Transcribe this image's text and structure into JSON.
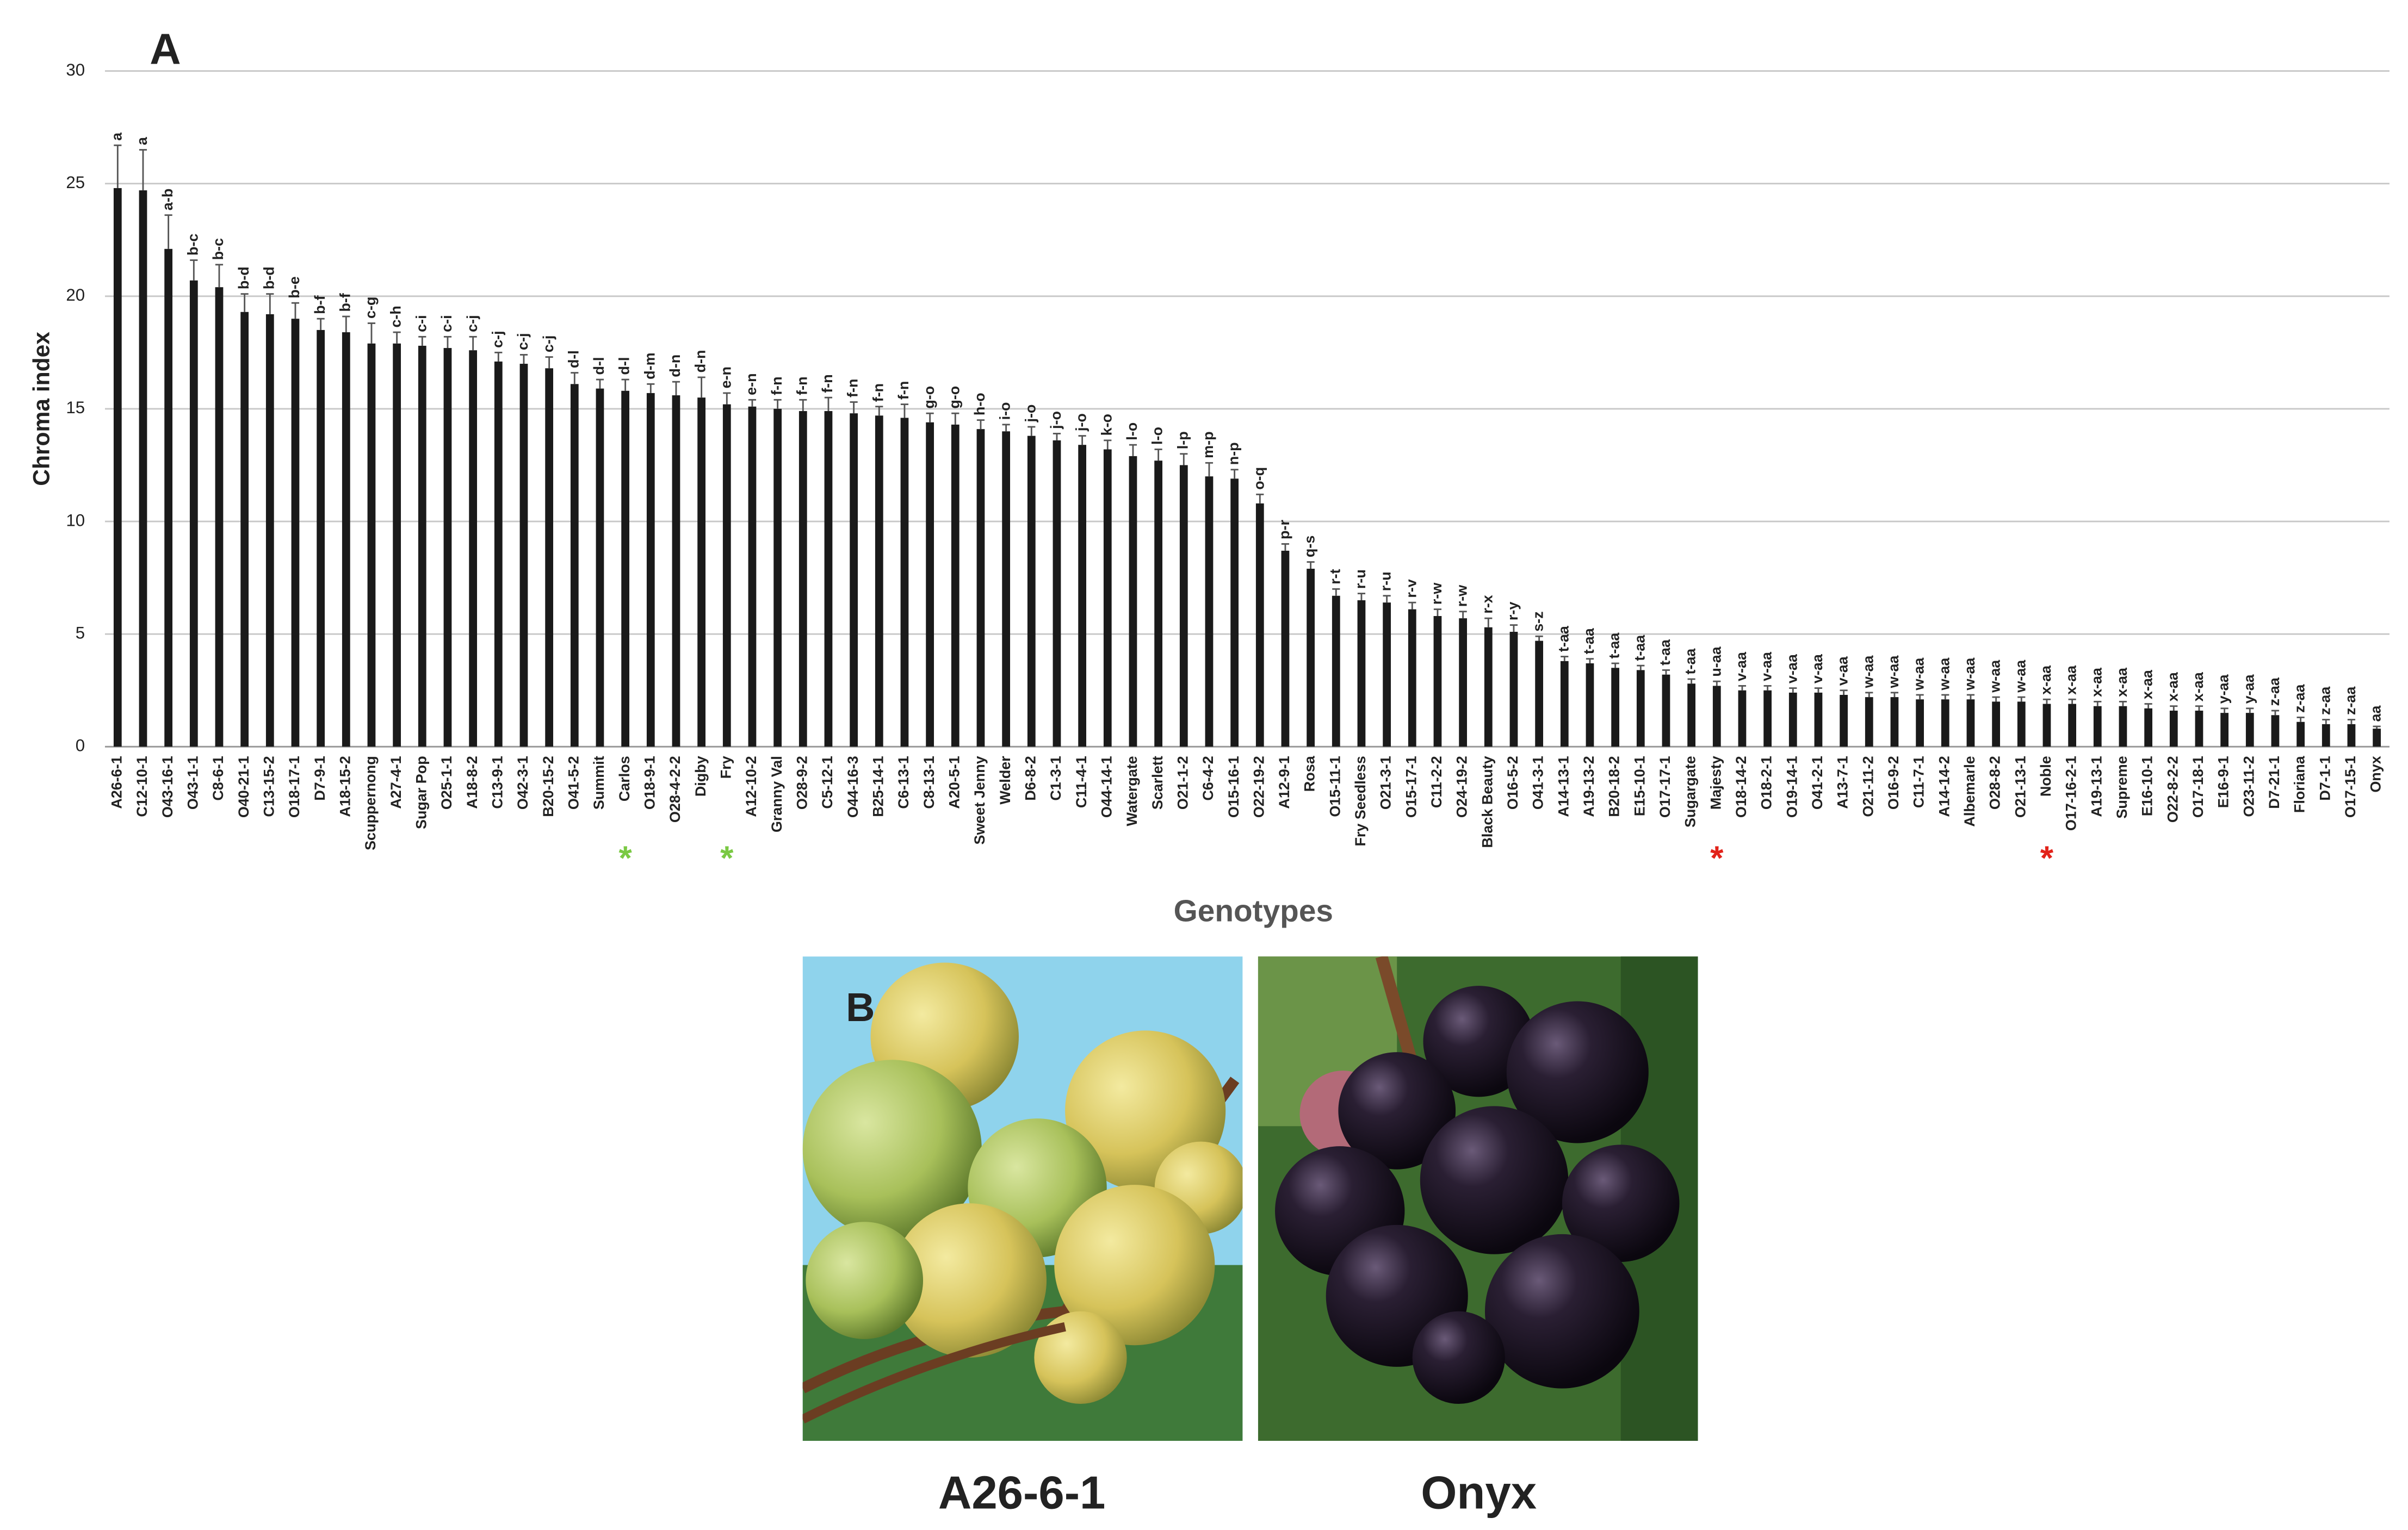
{
  "chart_data": {
    "type": "bar",
    "panel_label": "A",
    "ylabel": "Chroma index",
    "xlabel": "Genotypes",
    "categories": [
      "A26-6-1",
      "C12-10-1",
      "O43-16-1",
      "O43-1-1",
      "C8-6-1",
      "O40-21-1",
      "C13-15-2",
      "O18-17-1",
      "D7-9-1",
      "A18-15-2",
      "Scuppernong",
      "A27-4-1",
      "Sugar Pop",
      "O25-1-1",
      "A18-8-2",
      "C13-9-1",
      "O42-3-1",
      "B20-15-2",
      "O41-5-2",
      "Summit",
      "Carlos",
      "O18-9-1",
      "O28-4-2-2",
      "Digby",
      "Fry",
      "A12-10-2",
      "Granny Val",
      "O28-9-2",
      "C5-12-1",
      "O44-16-3",
      "B25-14-1",
      "C6-13-1",
      "C8-13-1",
      "A20-5-1",
      "Sweet Jenny",
      "Welder",
      "D6-8-2",
      "C1-3-1",
      "C11-4-1",
      "O44-14-1",
      "Watergate",
      "Scarlett",
      "O21-1-2",
      "C6-4-2",
      "O15-16-1",
      "O22-19-2",
      "A12-9-1",
      "Rosa",
      "O15-11-1",
      "Fry Seedless",
      "O21-3-1",
      "O15-17-1",
      "C11-2-2",
      "O24-19-2",
      "Black Beauty",
      "O16-5-2",
      "O41-3-1",
      "A14-13-1",
      "A19-13-2",
      "B20-18-2",
      "E15-10-1",
      "O17-17-1",
      "Sugargate",
      "Majesty",
      "O18-14-2",
      "O18-2-1",
      "O19-14-1",
      "O41-2-1",
      "A13-7-1",
      "O21-11-2",
      "O16-9-2",
      "C11-7-1",
      "A14-14-2",
      "Albemarle",
      "O28-8-2",
      "O21-13-1",
      "Noble",
      "O17-16-2-1",
      "A19-13-1",
      "Supreme",
      "E16-10-1",
      "O22-8-2-2",
      "O17-18-1",
      "E16-9-1",
      "O23-11-2",
      "D7-21-1",
      "Floriana",
      "D7-1-1",
      "O17-15-1",
      "Onyx"
    ],
    "values": [
      24.8,
      24.7,
      22.1,
      20.7,
      20.4,
      19.3,
      19.2,
      19.0,
      18.5,
      18.4,
      17.9,
      17.9,
      17.8,
      17.7,
      17.6,
      17.1,
      17.0,
      16.8,
      16.1,
      15.9,
      15.8,
      15.7,
      15.6,
      15.5,
      15.2,
      15.1,
      15.0,
      14.9,
      14.9,
      14.8,
      14.7,
      14.6,
      14.4,
      14.3,
      14.1,
      14.0,
      13.8,
      13.6,
      13.4,
      13.2,
      12.9,
      12.7,
      12.5,
      12.0,
      11.9,
      10.8,
      8.7,
      7.9,
      6.7,
      6.5,
      6.4,
      6.1,
      5.8,
      5.7,
      5.3,
      5.1,
      4.7,
      3.8,
      3.7,
      3.5,
      3.4,
      3.2,
      2.8,
      2.7,
      2.5,
      2.5,
      2.4,
      2.4,
      2.3,
      2.2,
      2.2,
      2.1,
      2.1,
      2.1,
      2.0,
      2.0,
      1.9,
      1.9,
      1.8,
      1.8,
      1.7,
      1.6,
      1.6,
      1.5,
      1.5,
      1.4,
      1.1,
      1.0,
      1.0,
      0.8
    ],
    "errors": [
      1.9,
      1.8,
      1.5,
      0.9,
      1.0,
      0.8,
      0.9,
      0.7,
      0.5,
      0.7,
      0.9,
      0.5,
      0.4,
      0.5,
      0.6,
      0.4,
      0.4,
      0.5,
      0.5,
      0.4,
      0.5,
      0.4,
      0.6,
      0.9,
      0.5,
      0.3,
      0.4,
      0.5,
      0.6,
      0.5,
      0.4,
      0.6,
      0.4,
      0.5,
      0.4,
      0.3,
      0.4,
      0.3,
      0.4,
      0.4,
      0.5,
      0.5,
      0.5,
      0.6,
      0.4,
      0.4,
      0.3,
      0.3,
      0.3,
      0.3,
      0.3,
      0.3,
      0.3,
      0.3,
      0.4,
      0.3,
      0.2,
      0.2,
      0.2,
      0.2,
      0.2,
      0.2,
      0.2,
      0.2,
      0.2,
      0.2,
      0.2,
      0.2,
      0.2,
      0.2,
      0.2,
      0.2,
      0.2,
      0.2,
      0.2,
      0.2,
      0.2,
      0.2,
      0.2,
      0.2,
      0.2,
      0.2,
      0.2,
      0.2,
      0.2,
      0.2,
      0.2,
      0.2,
      0.2,
      0.1
    ],
    "group_letters": [
      "a",
      "a",
      "a-b",
      "b-c",
      "b-c",
      "b-d",
      "b-d",
      "b-e",
      "b-f",
      "b-f",
      "c-g",
      "c-h",
      "c-i",
      "c-i",
      "c-j",
      "c-j",
      "c-j",
      "c-j",
      "d-l",
      "d-l",
      "d-l",
      "d-m",
      "d-n",
      "d-n",
      "e-n",
      "e-n",
      "f-n",
      "f-n",
      "f-n",
      "f-n",
      "f-n",
      "f-n",
      "g-o",
      "g-o",
      "h-o",
      "i-o",
      "j-o",
      "j-o",
      "j-o",
      "k-o",
      "l-o",
      "l-o",
      "l-p",
      "m-p",
      "n-p",
      "o-q",
      "p-r",
      "q-s",
      "r-t",
      "r-u",
      "r-u",
      "r-v",
      "r-w",
      "r-w",
      "r-x",
      "r-y",
      "s-z",
      "t-aa",
      "t-aa",
      "t-aa",
      "t-aa",
      "t-aa",
      "t-aa",
      "u-aa",
      "v-aa",
      "v-aa",
      "v-aa",
      "v-aa",
      "v-aa",
      "w-aa",
      "w-aa",
      "w-aa",
      "w-aa",
      "w-aa",
      "w-aa",
      "w-aa",
      "x-aa",
      "x-aa",
      "x-aa",
      "x-aa",
      "x-aa",
      "x-aa",
      "x-aa",
      "y-aa",
      "y-aa",
      "z-aa",
      "z-aa",
      "z-aa",
      "z-aa",
      "aa"
    ],
    "color": "#1a1a1a",
    "markers": [
      {
        "category": "Carlos",
        "text": "*",
        "color": "#7ac943"
      },
      {
        "category": "Fry",
        "text": "*",
        "color": "#7ac943"
      },
      {
        "category": "Majesty",
        "text": "*",
        "color": "#e2231a"
      },
      {
        "category": "Noble",
        "text": "*",
        "color": "#e2231a"
      }
    ],
    "ylim": [
      0,
      30
    ],
    "yticks": [
      0,
      5,
      10,
      15,
      20,
      25,
      30
    ],
    "grid": true
  },
  "panel_b": {
    "label": "B",
    "images": [
      {
        "caption": "A26-6-1"
      },
      {
        "caption": "Onyx"
      }
    ]
  }
}
